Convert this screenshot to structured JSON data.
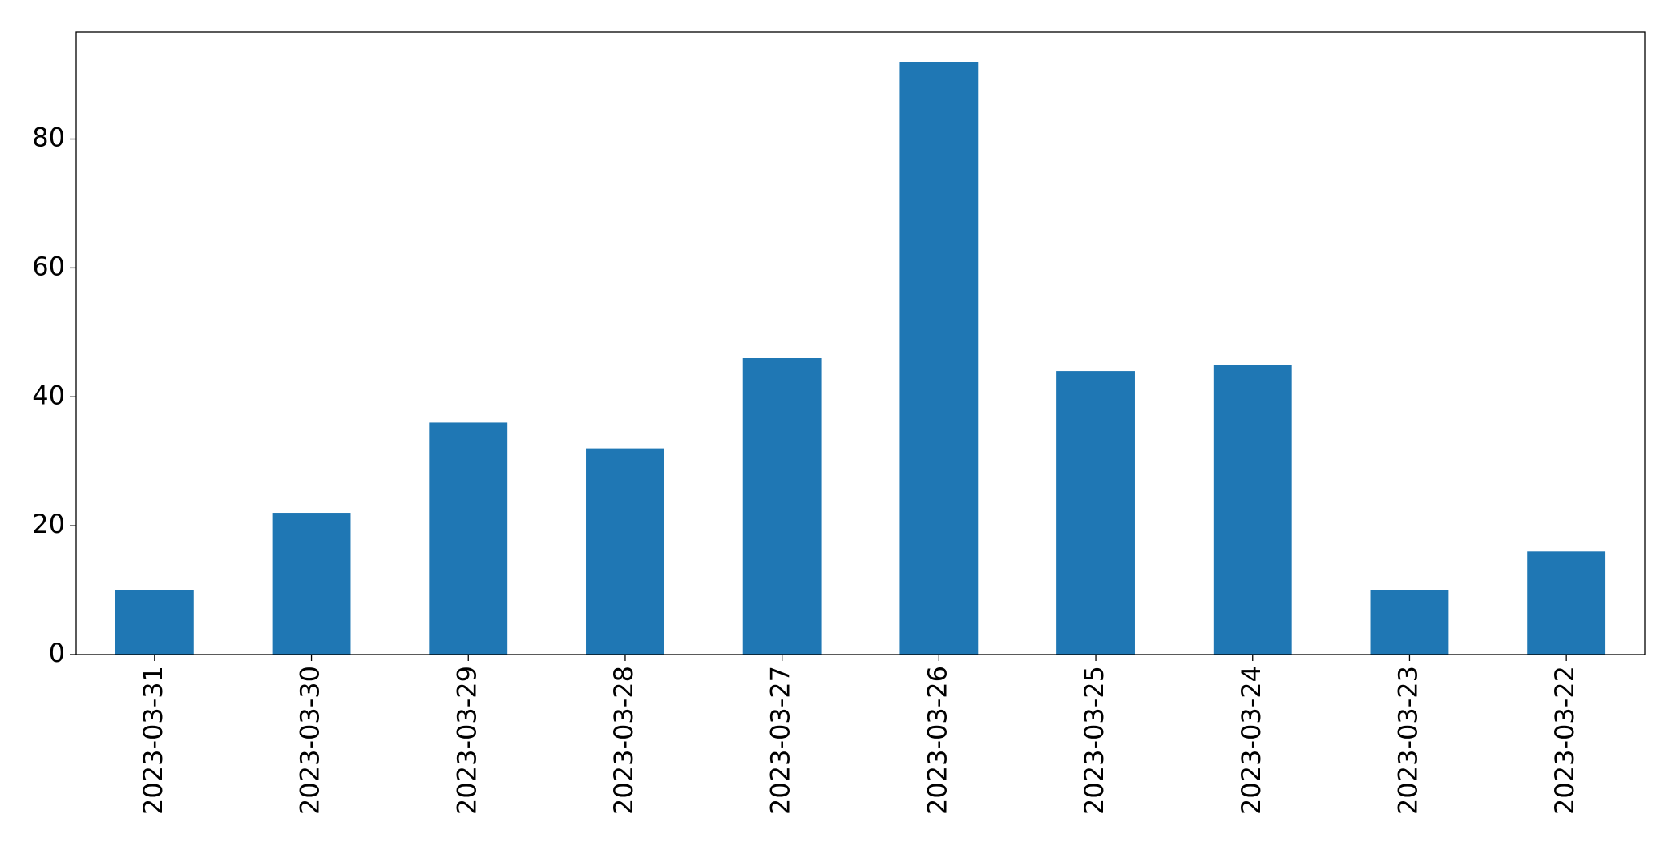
{
  "chart_data": {
    "type": "bar",
    "categories": [
      "2023-03-31",
      "2023-03-30",
      "2023-03-29",
      "2023-03-28",
      "2023-03-27",
      "2023-03-26",
      "2023-03-25",
      "2023-03-24",
      "2023-03-23",
      "2023-03-22"
    ],
    "values": [
      10,
      22,
      36,
      32,
      46,
      92,
      44,
      45,
      10,
      16
    ],
    "color": "#1f77b4",
    "ylim": [
      0,
      96.6
    ],
    "yticks": [
      0,
      20,
      40,
      60,
      80
    ],
    "grid": false
  }
}
